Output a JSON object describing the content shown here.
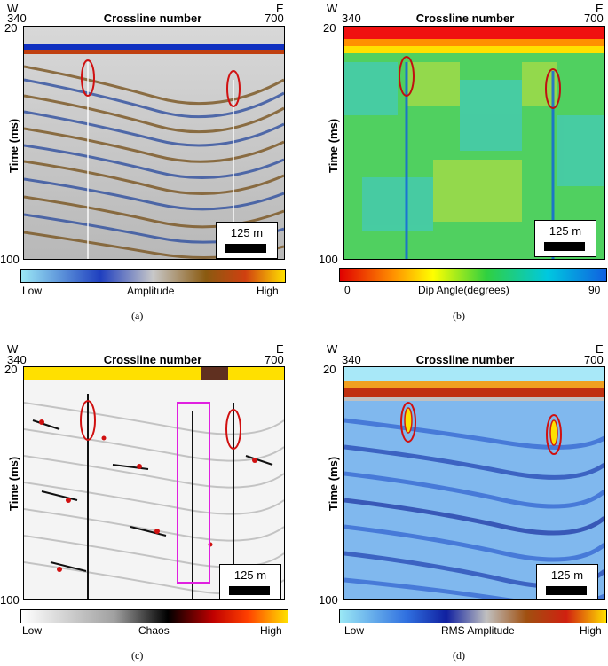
{
  "panels": [
    {
      "id": "a",
      "dir_left": "W",
      "dir_right": "E",
      "x_start": "340",
      "x_end": "700",
      "xlabel": "Crossline number",
      "ylabel": "Time (ms)",
      "y_top": "20",
      "y_bottom": "100",
      "scale_text": "125 m",
      "cbar_left": "Low",
      "cbar_mid": "Amplitude",
      "cbar_right": "High",
      "caption": "(a)"
    },
    {
      "id": "b",
      "dir_left": "W",
      "dir_right": "E",
      "x_start": "340",
      "x_end": "700",
      "xlabel": "Crossline number",
      "ylabel": "Time (ms)",
      "y_top": "20",
      "y_bottom": "100",
      "scale_text": "125 m",
      "cbar_left": "0",
      "cbar_mid": "Dip Angle(degrees)",
      "cbar_right": "90",
      "caption": "(b)"
    },
    {
      "id": "c",
      "dir_left": "W",
      "dir_right": "E",
      "x_start": "340",
      "x_end": "700",
      "xlabel": "Crossline number",
      "ylabel": "Time (ms)",
      "y_top": "20",
      "y_bottom": "100",
      "scale_text": "125 m",
      "cbar_left": "Low",
      "cbar_mid": "Chaos",
      "cbar_right": "High",
      "caption": "(c)"
    },
    {
      "id": "d",
      "dir_left": "W",
      "dir_right": "E",
      "x_start": "340",
      "x_end": "700",
      "xlabel": "Crossline number",
      "ylabel": "Time (ms)",
      "y_top": "20",
      "y_bottom": "100",
      "scale_text": "125 m",
      "cbar_left": "Low",
      "cbar_mid": "RMS Amplitude",
      "cbar_right": "High",
      "caption": "(d)"
    }
  ],
  "colors": {
    "amplitude_ramp": [
      "#9be8f5",
      "#1f3fbf",
      "#c8c8c8",
      "#8a5a10",
      "#d04010",
      "#ffe000"
    ],
    "dip_ramp": [
      "#e00000",
      "#ff9000",
      "#ffff00",
      "#30d040",
      "#00c8e0",
      "#1060e0"
    ],
    "chaos_ramp": [
      "#ffffff",
      "#a0a0a0",
      "#000000",
      "#c00000",
      "#ff4000",
      "#ffe000"
    ],
    "rms_ramp": [
      "#9be8f5",
      "#3070e0",
      "#1020a0",
      "#c0c0c0",
      "#a05010",
      "#d02010",
      "#ffe000"
    ],
    "annotation_ellipse": "#d01010",
    "annotation_box": "#e020e0"
  }
}
